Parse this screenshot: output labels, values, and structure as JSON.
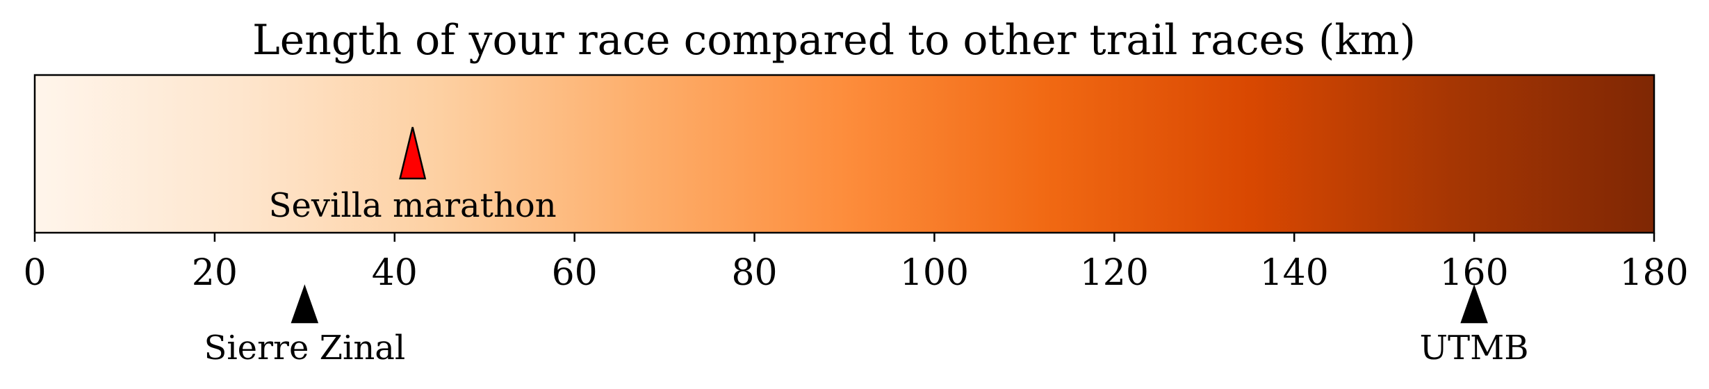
{
  "chart_data": {
    "type": "colorbar",
    "title": "Length of your race compared to other trail races (km)",
    "xlim": [
      0,
      180
    ],
    "ticks": [
      0,
      20,
      40,
      60,
      80,
      100,
      120,
      140,
      160,
      180
    ],
    "tick_labels": [
      "0",
      "20",
      "40",
      "60",
      "80",
      "100",
      "120",
      "140",
      "160",
      "180"
    ],
    "colormap": [
      "#fff5eb",
      "#fee6ce",
      "#fdd0a2",
      "#fdae6b",
      "#fd8d3c",
      "#f16913",
      "#d94801",
      "#a63603",
      "#7f2704"
    ],
    "your_race": {
      "label": "Sevilla marathon",
      "value": 42,
      "color": "#ff0000"
    },
    "reference_races": [
      {
        "label": "Sierre Zinal",
        "value": 30,
        "color": "#000000"
      },
      {
        "label": "UTMB",
        "value": 160,
        "color": "#000000"
      }
    ]
  }
}
